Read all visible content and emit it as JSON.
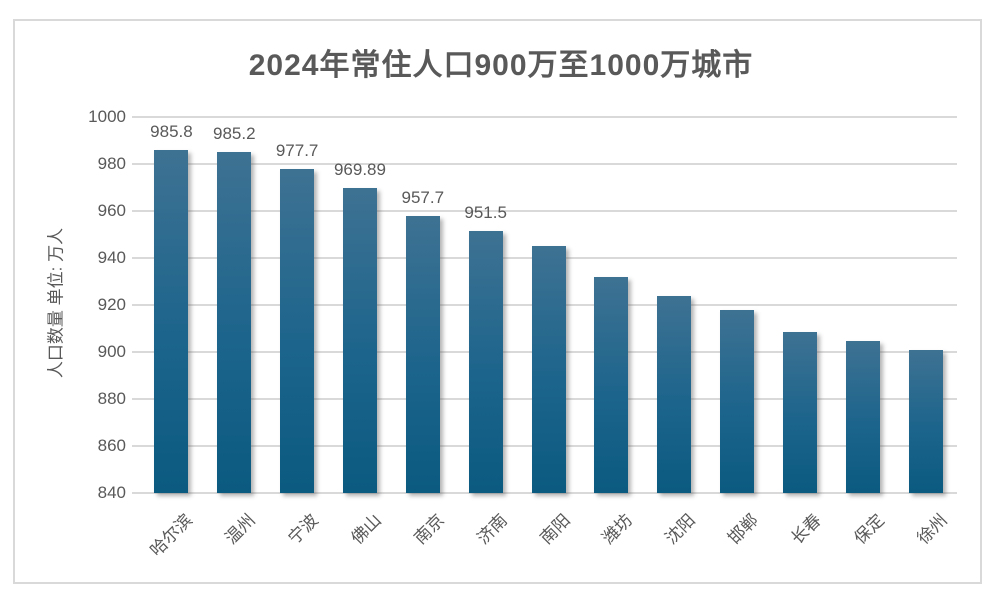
{
  "title": "2024年常住人口900万至1000万城市",
  "colors": {
    "text": "#595959",
    "gridline": "#d9d9d9",
    "border": "#d9d9d9",
    "bar_top": "#3e7293",
    "bar_bottom": "#0b5a80"
  },
  "chart_data": {
    "type": "bar",
    "title": "2024年常住人口900万至1000万城市",
    "xlabel": "",
    "ylabel": "人口数量 单位: 万人",
    "ylim": [
      840,
      1000
    ],
    "yticks": [
      840,
      860,
      880,
      900,
      920,
      940,
      960,
      980,
      1000
    ],
    "grid": true,
    "legend": false,
    "categories": [
      "哈尔滨",
      "温州",
      "宁波",
      "佛山",
      "南京",
      "济南",
      "南阳",
      "潍坊",
      "沈阳",
      "邯郸",
      "长春",
      "保定",
      "徐州"
    ],
    "values": [
      985.8,
      985.2,
      977.7,
      969.89,
      957.7,
      951.5,
      945.3,
      932.0,
      923.9,
      917.7,
      908.4,
      904.6,
      901.0
    ],
    "value_labels": [
      "985.8",
      "985.2",
      "977.7",
      "969.89",
      "957.7",
      "951.5",
      "",
      "",
      "",
      "",
      "",
      "",
      ""
    ]
  }
}
